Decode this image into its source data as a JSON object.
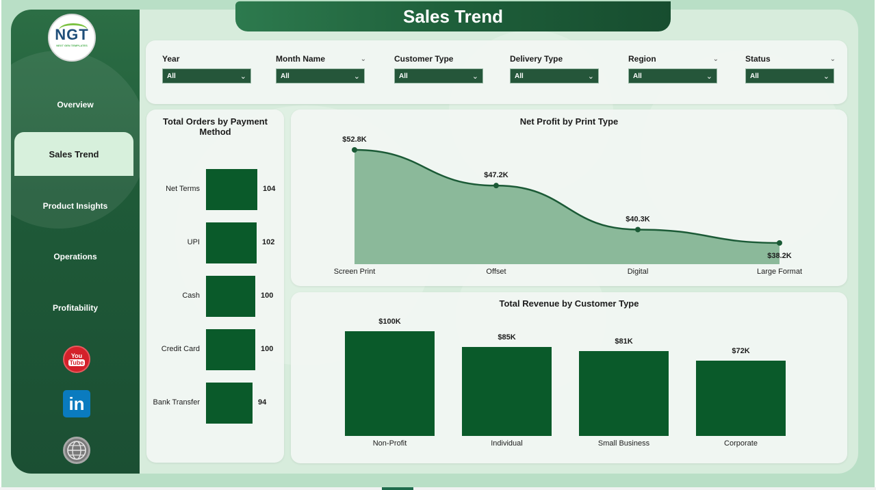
{
  "header": {
    "title": "Sales Trend"
  },
  "logo": {
    "text": "NGT",
    "subtext": "NEXT GEN TEMPLATES"
  },
  "sidebar": {
    "items": [
      {
        "label": "Overview",
        "active": false
      },
      {
        "label": "Sales Trend",
        "active": true
      },
      {
        "label": "Product Insights",
        "active": false
      },
      {
        "label": "Operations",
        "active": false
      },
      {
        "label": "Profitability",
        "active": false
      }
    ],
    "social": [
      {
        "icon": "youtube-icon",
        "line1": "You",
        "line2": "Tube"
      },
      {
        "icon": "linkedin-icon",
        "text": "in"
      },
      {
        "icon": "www-globe-icon",
        "text": "WWW"
      }
    ]
  },
  "filters": [
    {
      "label": "Year",
      "value": "All"
    },
    {
      "label": "Month Name",
      "value": "All"
    },
    {
      "label": "Customer Type",
      "value": "All"
    },
    {
      "label": "Delivery Type",
      "value": "All"
    },
    {
      "label": "Region",
      "value": "All"
    },
    {
      "label": "Status",
      "value": "All"
    }
  ],
  "colors": {
    "accent": "#0a5a2a",
    "sidebar": "#1f5a38",
    "background": "#b9dfc6",
    "area_fill": "#8bb99a",
    "line": "#1b5a36"
  },
  "chart_data": [
    {
      "type": "bar",
      "orientation": "horizontal",
      "title": "Total Orders by Payment Method",
      "categories": [
        "Net Terms",
        "UPI",
        "Cash",
        "Credit Card",
        "Bank Transfer"
      ],
      "values": [
        104,
        102,
        100,
        100,
        94
      ],
      "labels": [
        "104",
        "102",
        "100",
        "100",
        "94"
      ]
    },
    {
      "type": "area",
      "title": "Net Profit by Print Type",
      "categories": [
        "Screen Print",
        "Offset",
        "Digital",
        "Large Format"
      ],
      "values": [
        52.8,
        47.2,
        40.3,
        38.2
      ],
      "labels": [
        "$52.8K",
        "$47.2K",
        "$40.3K",
        "$38.2K"
      ],
      "unit": "K"
    },
    {
      "type": "bar",
      "title": "Total Revenue by Customer Type",
      "categories": [
        "Non-Profit",
        "Individual",
        "Small Business",
        "Corporate"
      ],
      "values": [
        100,
        85,
        81,
        72
      ],
      "labels": [
        "$100K",
        "$85K",
        "$81K",
        "$72K"
      ],
      "unit": "K"
    }
  ]
}
